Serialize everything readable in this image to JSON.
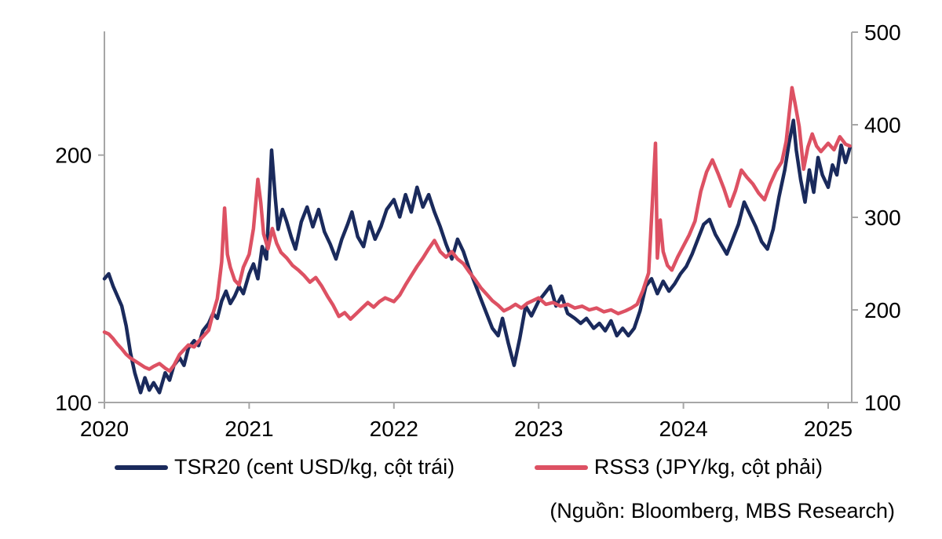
{
  "chart_data": {
    "type": "line",
    "title": "",
    "source_note": "(Nguồn: Bloomberg, MBS Research)",
    "legend_position": "bottom",
    "grid": false,
    "axis_color": "#a6a6a6",
    "text_color": "#000000",
    "x_axis": {
      "ticks": [
        2020,
        2021,
        2022,
        2023,
        2024,
        2025
      ],
      "range": [
        2020,
        2025.17
      ]
    },
    "left_axis": {
      "ticks": [
        100,
        200
      ],
      "range": [
        100,
        250
      ],
      "unit": "cent USD/kg"
    },
    "right_axis": {
      "ticks": [
        100,
        200,
        300,
        400,
        500
      ],
      "range": [
        100,
        500
      ],
      "unit": "JPY/kg"
    },
    "series": [
      {
        "name": "TSR20 (cent USD/kg, cột trái)",
        "axis": "left",
        "color": "#1a2a5c",
        "points": [
          [
            2020.0,
            150
          ],
          [
            2020.03,
            152
          ],
          [
            2020.06,
            147
          ],
          [
            2020.09,
            143
          ],
          [
            2020.12,
            139
          ],
          [
            2020.15,
            131
          ],
          [
            2020.18,
            120
          ],
          [
            2020.21,
            112
          ],
          [
            2020.25,
            104
          ],
          [
            2020.28,
            110
          ],
          [
            2020.31,
            105
          ],
          [
            2020.34,
            108
          ],
          [
            2020.38,
            104
          ],
          [
            2020.42,
            112
          ],
          [
            2020.45,
            109
          ],
          [
            2020.48,
            115
          ],
          [
            2020.52,
            118
          ],
          [
            2020.55,
            115
          ],
          [
            2020.58,
            122
          ],
          [
            2020.62,
            125
          ],
          [
            2020.65,
            123
          ],
          [
            2020.68,
            129
          ],
          [
            2020.72,
            132
          ],
          [
            2020.75,
            136
          ],
          [
            2020.78,
            134
          ],
          [
            2020.81,
            141
          ],
          [
            2020.84,
            145
          ],
          [
            2020.87,
            140
          ],
          [
            2020.9,
            143
          ],
          [
            2020.93,
            147
          ],
          [
            2020.96,
            144
          ],
          [
            2021.0,
            152
          ],
          [
            2021.03,
            156
          ],
          [
            2021.06,
            150
          ],
          [
            2021.09,
            163
          ],
          [
            2021.12,
            158
          ],
          [
            2021.155,
            202
          ],
          [
            2021.18,
            183
          ],
          [
            2021.2,
            170
          ],
          [
            2021.23,
            178
          ],
          [
            2021.26,
            173
          ],
          [
            2021.29,
            167
          ],
          [
            2021.32,
            162
          ],
          [
            2021.36,
            173
          ],
          [
            2021.4,
            179
          ],
          [
            2021.44,
            171
          ],
          [
            2021.48,
            178
          ],
          [
            2021.52,
            169
          ],
          [
            2021.56,
            164
          ],
          [
            2021.6,
            158
          ],
          [
            2021.64,
            166
          ],
          [
            2021.68,
            172
          ],
          [
            2021.71,
            177
          ],
          [
            2021.75,
            167
          ],
          [
            2021.79,
            163
          ],
          [
            2021.83,
            173
          ],
          [
            2021.87,
            166
          ],
          [
            2021.91,
            171
          ],
          [
            2021.95,
            178
          ],
          [
            2022.0,
            182
          ],
          [
            2022.04,
            175
          ],
          [
            2022.08,
            184
          ],
          [
            2022.12,
            177
          ],
          [
            2022.16,
            187
          ],
          [
            2022.2,
            179
          ],
          [
            2022.24,
            184
          ],
          [
            2022.28,
            177
          ],
          [
            2022.32,
            171
          ],
          [
            2022.36,
            164
          ],
          [
            2022.4,
            158
          ],
          [
            2022.44,
            166
          ],
          [
            2022.48,
            161
          ],
          [
            2022.52,
            154
          ],
          [
            2022.56,
            148
          ],
          [
            2022.6,
            142
          ],
          [
            2022.64,
            136
          ],
          [
            2022.68,
            130
          ],
          [
            2022.72,
            127
          ],
          [
            2022.75,
            134
          ],
          [
            2022.79,
            124
          ],
          [
            2022.83,
            115
          ],
          [
            2022.87,
            126
          ],
          [
            2022.91,
            139
          ],
          [
            2022.95,
            135
          ],
          [
            2023.0,
            141
          ],
          [
            2023.04,
            144
          ],
          [
            2023.08,
            147
          ],
          [
            2023.12,
            139
          ],
          [
            2023.16,
            143
          ],
          [
            2023.2,
            136
          ],
          [
            2023.25,
            134
          ],
          [
            2023.29,
            132
          ],
          [
            2023.33,
            134
          ],
          [
            2023.38,
            130
          ],
          [
            2023.42,
            132
          ],
          [
            2023.46,
            129
          ],
          [
            2023.5,
            133
          ],
          [
            2023.54,
            127
          ],
          [
            2023.58,
            130
          ],
          [
            2023.62,
            127
          ],
          [
            2023.66,
            130
          ],
          [
            2023.7,
            137
          ],
          [
            2023.74,
            147
          ],
          [
            2023.78,
            150
          ],
          [
            2023.82,
            144
          ],
          [
            2023.86,
            149
          ],
          [
            2023.9,
            145
          ],
          [
            2023.94,
            148
          ],
          [
            2023.98,
            152
          ],
          [
            2024.02,
            155
          ],
          [
            2024.06,
            160
          ],
          [
            2024.1,
            166
          ],
          [
            2024.14,
            172
          ],
          [
            2024.18,
            174
          ],
          [
            2024.22,
            168
          ],
          [
            2024.26,
            164
          ],
          [
            2024.3,
            160
          ],
          [
            2024.34,
            166
          ],
          [
            2024.38,
            172
          ],
          [
            2024.42,
            181
          ],
          [
            2024.46,
            176
          ],
          [
            2024.5,
            171
          ],
          [
            2024.54,
            165
          ],
          [
            2024.58,
            162
          ],
          [
            2024.62,
            170
          ],
          [
            2024.66,
            183
          ],
          [
            2024.7,
            194
          ],
          [
            2024.73,
            205
          ],
          [
            2024.76,
            214
          ],
          [
            2024.78,
            202
          ],
          [
            2024.81,
            190
          ],
          [
            2024.84,
            181
          ],
          [
            2024.87,
            194
          ],
          [
            2024.9,
            185
          ],
          [
            2024.93,
            199
          ],
          [
            2024.96,
            192
          ],
          [
            2025.0,
            187
          ],
          [
            2025.03,
            196
          ],
          [
            2025.06,
            192
          ],
          [
            2025.09,
            204
          ],
          [
            2025.12,
            197
          ],
          [
            2025.15,
            203
          ]
        ]
      },
      {
        "name": "RSS3 (JPY/kg, cột phải)",
        "axis": "right",
        "color": "#dd5163",
        "points": [
          [
            2020.0,
            176
          ],
          [
            2020.03,
            174
          ],
          [
            2020.06,
            169
          ],
          [
            2020.09,
            163
          ],
          [
            2020.12,
            158
          ],
          [
            2020.15,
            152
          ],
          [
            2020.18,
            148
          ],
          [
            2020.21,
            145
          ],
          [
            2020.25,
            141
          ],
          [
            2020.28,
            138
          ],
          [
            2020.31,
            136
          ],
          [
            2020.34,
            139
          ],
          [
            2020.38,
            142
          ],
          [
            2020.42,
            137
          ],
          [
            2020.45,
            134
          ],
          [
            2020.48,
            140
          ],
          [
            2020.52,
            152
          ],
          [
            2020.55,
            157
          ],
          [
            2020.58,
            162
          ],
          [
            2020.62,
            160
          ],
          [
            2020.65,
            166
          ],
          [
            2020.68,
            171
          ],
          [
            2020.72,
            178
          ],
          [
            2020.75,
            196
          ],
          [
            2020.78,
            212
          ],
          [
            2020.81,
            252
          ],
          [
            2020.83,
            310
          ],
          [
            2020.85,
            260
          ],
          [
            2020.87,
            246
          ],
          [
            2020.9,
            232
          ],
          [
            2020.93,
            227
          ],
          [
            2020.96,
            246
          ],
          [
            2021.0,
            260
          ],
          [
            2021.03,
            288
          ],
          [
            2021.06,
            341
          ],
          [
            2021.08,
            316
          ],
          [
            2021.1,
            282
          ],
          [
            2021.13,
            266
          ],
          [
            2021.16,
            288
          ],
          [
            2021.19,
            272
          ],
          [
            2021.22,
            262
          ],
          [
            2021.26,
            256
          ],
          [
            2021.3,
            248
          ],
          [
            2021.34,
            243
          ],
          [
            2021.38,
            237
          ],
          [
            2021.42,
            230
          ],
          [
            2021.46,
            235
          ],
          [
            2021.5,
            226
          ],
          [
            2021.54,
            215
          ],
          [
            2021.58,
            205
          ],
          [
            2021.62,
            193
          ],
          [
            2021.66,
            197
          ],
          [
            2021.7,
            190
          ],
          [
            2021.74,
            196
          ],
          [
            2021.78,
            202
          ],
          [
            2021.82,
            208
          ],
          [
            2021.86,
            203
          ],
          [
            2021.9,
            209
          ],
          [
            2021.94,
            213
          ],
          [
            2022.0,
            209
          ],
          [
            2022.04,
            216
          ],
          [
            2022.08,
            227
          ],
          [
            2022.12,
            237
          ],
          [
            2022.16,
            247
          ],
          [
            2022.2,
            256
          ],
          [
            2022.24,
            266
          ],
          [
            2022.28,
            275
          ],
          [
            2022.32,
            263
          ],
          [
            2022.36,
            257
          ],
          [
            2022.4,
            263
          ],
          [
            2022.44,
            255
          ],
          [
            2022.48,
            250
          ],
          [
            2022.52,
            241
          ],
          [
            2022.56,
            233
          ],
          [
            2022.6,
            224
          ],
          [
            2022.64,
            217
          ],
          [
            2022.68,
            210
          ],
          [
            2022.72,
            205
          ],
          [
            2022.76,
            199
          ],
          [
            2022.8,
            202
          ],
          [
            2022.84,
            206
          ],
          [
            2022.88,
            202
          ],
          [
            2022.92,
            207
          ],
          [
            2022.96,
            210
          ],
          [
            2023.0,
            213
          ],
          [
            2023.05,
            206
          ],
          [
            2023.1,
            208
          ],
          [
            2023.15,
            204
          ],
          [
            2023.2,
            206
          ],
          [
            2023.25,
            202
          ],
          [
            2023.3,
            204
          ],
          [
            2023.35,
            200
          ],
          [
            2023.4,
            202
          ],
          [
            2023.45,
            198
          ],
          [
            2023.5,
            200
          ],
          [
            2023.55,
            196
          ],
          [
            2023.6,
            199
          ],
          [
            2023.64,
            202
          ],
          [
            2023.68,
            206
          ],
          [
            2023.72,
            221
          ],
          [
            2023.76,
            240
          ],
          [
            2023.807,
            380
          ],
          [
            2023.82,
            256
          ],
          [
            2023.84,
            297
          ],
          [
            2023.86,
            263
          ],
          [
            2023.89,
            248
          ],
          [
            2023.92,
            243
          ],
          [
            2023.96,
            257
          ],
          [
            2024.0,
            269
          ],
          [
            2024.04,
            281
          ],
          [
            2024.08,
            296
          ],
          [
            2024.12,
            328
          ],
          [
            2024.16,
            349
          ],
          [
            2024.2,
            362
          ],
          [
            2024.24,
            347
          ],
          [
            2024.28,
            331
          ],
          [
            2024.32,
            312
          ],
          [
            2024.36,
            329
          ],
          [
            2024.4,
            351
          ],
          [
            2024.44,
            343
          ],
          [
            2024.48,
            336
          ],
          [
            2024.52,
            326
          ],
          [
            2024.56,
            319
          ],
          [
            2024.6,
            336
          ],
          [
            2024.64,
            350
          ],
          [
            2024.68,
            360
          ],
          [
            2024.71,
            382
          ],
          [
            2024.75,
            440
          ],
          [
            2024.77,
            424
          ],
          [
            2024.8,
            398
          ],
          [
            2024.83,
            352
          ],
          [
            2024.86,
            376
          ],
          [
            2024.89,
            390
          ],
          [
            2024.92,
            377
          ],
          [
            2024.95,
            371
          ],
          [
            2025.0,
            380
          ],
          [
            2025.04,
            373
          ],
          [
            2025.08,
            387
          ],
          [
            2025.12,
            379
          ],
          [
            2025.15,
            377
          ]
        ]
      }
    ]
  }
}
